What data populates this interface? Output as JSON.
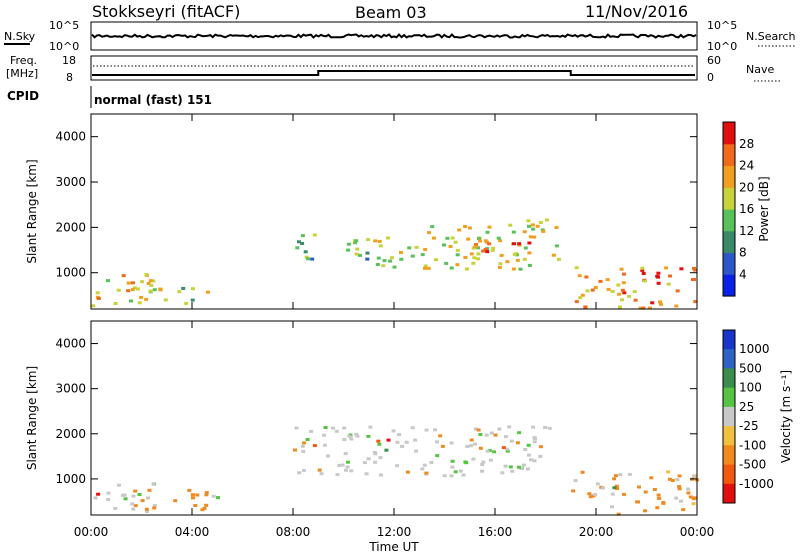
{
  "header": {
    "station": "Stokkseyri (fitACF)",
    "beam": "Beam 03",
    "date": "11/Nov/2016"
  },
  "noise_panel": {
    "left_label": "N.Sky",
    "right_label": "N.Search",
    "left_ticks": [
      "10^5",
      "10^0"
    ],
    "right_ticks": [
      "10^5",
      "10^0"
    ]
  },
  "freq_panel": {
    "left_label_line1": "Freq.",
    "left_label_line2": "[MHz]",
    "right_label": "Nave",
    "left_ticks": [
      "18",
      "8"
    ],
    "right_ticks": [
      "60",
      "0"
    ],
    "nave_steps": [
      {
        "time": "00:00",
        "level": "low"
      },
      {
        "time": "09:00",
        "level": "high"
      },
      {
        "time": "19:00",
        "level": "low"
      }
    ]
  },
  "cpid": {
    "label": "CPID",
    "mode": "normal (fast) 151"
  },
  "time_axis": {
    "label": "Time UT",
    "ticks": [
      "00:00",
      "04:00",
      "08:00",
      "12:00",
      "16:00",
      "20:00",
      "00:00"
    ]
  },
  "chart_data": [
    {
      "type": "heatmap",
      "panel": "power",
      "ylabel": "Slant Range [km]",
      "yticks": [
        "1000",
        "2000",
        "3000",
        "4000"
      ],
      "ylim": [
        200,
        4500
      ],
      "colorbar_label": "Power [dB]",
      "colorbar_ticks": [
        "4",
        "8",
        "12",
        "16",
        "20",
        "24",
        "28"
      ],
      "colorbar_colors": [
        "#0a20e6",
        "#2d58c8",
        "#3a8a6a",
        "#59c159",
        "#c8d23a",
        "#f0a020",
        "#f06a1e",
        "#e01010"
      ],
      "echo_regions": [
        {
          "t_start": 0.0,
          "t_end": 2.5,
          "r_min": 300,
          "r_max": 1000,
          "mean_power_db": 20
        },
        {
          "t_start": 1.5,
          "t_end": 5.0,
          "r_min": 350,
          "r_max": 800,
          "mean_power_db": 16
        },
        {
          "t_start": 8.0,
          "t_end": 11.0,
          "r_min": 1300,
          "r_max": 1900,
          "mean_power_db": 12
        },
        {
          "t_start": 11.0,
          "t_end": 18.5,
          "r_min": 1100,
          "r_max": 2200,
          "mean_power_db": 18
        },
        {
          "t_start": 15.0,
          "t_end": 17.5,
          "r_min": 1400,
          "r_max": 1800,
          "mean_power_db": 26
        },
        {
          "t_start": 19.0,
          "t_end": 24.0,
          "r_min": 250,
          "r_max": 1200,
          "mean_power_db": 24
        }
      ]
    },
    {
      "type": "heatmap",
      "panel": "velocity",
      "ylabel": "Slant Range [km]",
      "yticks": [
        "1000",
        "2000",
        "3000",
        "4000"
      ],
      "ylim": [
        200,
        4500
      ],
      "colorbar_label": "Velocity [m s⁻¹]",
      "colorbar_ticks": [
        "1000",
        "500",
        "100",
        "25",
        "-25",
        "-100",
        "-500",
        "-1000"
      ],
      "colorbar_colors": [
        "#1a36c8",
        "#2e63c3",
        "#3a8d4c",
        "#55c443",
        "#c8c8c8",
        "#f0c040",
        "#f08a20",
        "#f05a10",
        "#e01010"
      ],
      "echo_regions": [
        {
          "t_start": 0.0,
          "t_end": 2.5,
          "r_min": 300,
          "r_max": 1000,
          "mean_velocity": 25
        },
        {
          "t_start": 1.5,
          "t_end": 5.0,
          "r_min": 350,
          "r_max": 800,
          "mean_velocity": -100
        },
        {
          "t_start": 8.0,
          "t_end": 18.5,
          "r_min": 1100,
          "r_max": 2200,
          "mean_velocity": 0
        },
        {
          "t_start": 19.0,
          "t_end": 24.0,
          "r_min": 250,
          "r_max": 1200,
          "mean_velocity": -100
        }
      ]
    }
  ]
}
